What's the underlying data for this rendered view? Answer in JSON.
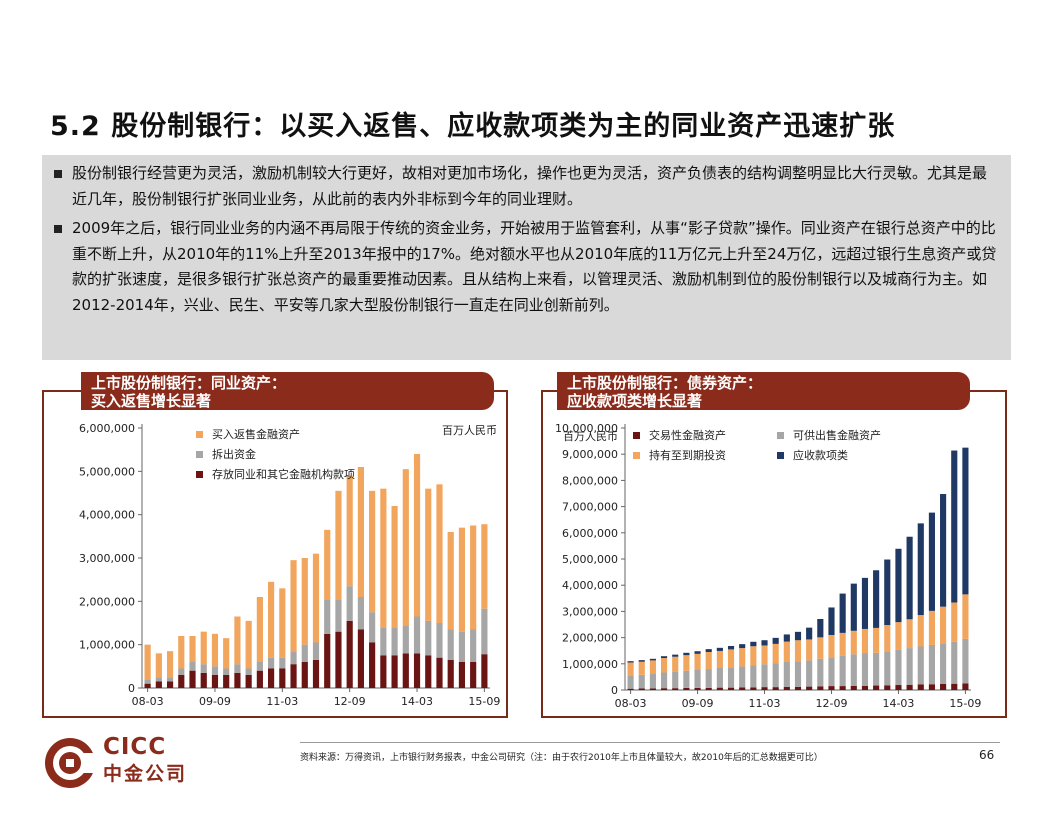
{
  "title": "5.2 股份制银行：以买入返售、应收款项类为主的同业资产迅速扩张",
  "bullets": [
    "股份制银行经营更为灵活，激励机制较大行更好，故相对更加市场化，操作也更为灵活，资产负债表的结构调整明显比大行灵敏。尤其是最近几年，股份制银行扩张同业业务，从此前的表内外非标到今年的同业理财。",
    "2009年之后，银行同业业务的内涵不再局限于传统的资金业务，开始被用于监管套利，从事“影子贷款”操作。同业资产在银行总资产中的比重不断上升，从2010年的11%上升至2013年报中的17%。绝对额水平也从2010年底的11万亿元上升至24万亿，远超过银行生息资产或贷款的扩张速度，是很多银行扩张总资产的最重要推动因素。且从结构上来看，以管理灵活、激励机制到位的股份制银行以及城商行为主。如2012-2014年，兴业、民生、平安等几家大型股份制银行一直走在同业创新前列。"
  ],
  "panels": {
    "left_header_line1": "上市股份制银行：同业资产：",
    "left_header_line2": "买入返售增长显著",
    "right_header_line1": "上市股份制银行：债券资产：",
    "right_header_line2": "应收款项类增长显著"
  },
  "footer": {
    "source": "资料来源：万得资讯，上市银行财务报表，中金公司研究（注：由于农行2010年上市且体量较大，故2010年后的汇总数据更可比）",
    "page": "66"
  },
  "logo": {
    "en": "CICC",
    "zh": "中金公司",
    "color": "#8b2b1b"
  },
  "chart_data": [
    {
      "type": "bar",
      "stacked": true,
      "unit": "百万人民币",
      "x_tick_labels": [
        "08-03",
        "09-09",
        "11-03",
        "12-09",
        "14-03",
        "15-09"
      ],
      "categories": [
        "08-03",
        "08-06",
        "08-09",
        "08-12",
        "09-03",
        "09-06",
        "09-09",
        "09-12",
        "10-03",
        "10-06",
        "10-09",
        "10-12",
        "11-03",
        "11-06",
        "11-09",
        "11-12",
        "12-03",
        "12-06",
        "12-09",
        "12-12",
        "13-03",
        "13-06",
        "13-09",
        "13-12",
        "14-03",
        "14-06",
        "14-09",
        "14-12",
        "15-03",
        "15-06",
        "15-09"
      ],
      "y_tick_labels": [
        "0",
        "1,000,000",
        "2,000,000",
        "3,000,000",
        "4,000,000",
        "5,000,000",
        "6,000,000"
      ],
      "ylim": [
        0,
        6000000
      ],
      "legend_position": "top",
      "series": [
        {
          "name": "存放同业和其它金融机构款项",
          "color": "#6b1414",
          "values": [
            100000,
            150000,
            150000,
            300000,
            400000,
            350000,
            300000,
            300000,
            350000,
            300000,
            400000,
            450000,
            450000,
            550000,
            600000,
            650000,
            1250000,
            1300000,
            1550000,
            1350000,
            1050000,
            750000,
            750000,
            800000,
            800000,
            750000,
            700000,
            650000,
            600000,
            600000,
            780000
          ]
        },
        {
          "name": "拆出资金",
          "color": "#a6a6a6",
          "values": [
            100000,
            100000,
            100000,
            150000,
            200000,
            200000,
            200000,
            150000,
            200000,
            150000,
            200000,
            250000,
            250000,
            300000,
            400000,
            400000,
            800000,
            750000,
            800000,
            750000,
            700000,
            650000,
            650000,
            650000,
            850000,
            800000,
            800000,
            700000,
            700000,
            750000,
            1050000
          ]
        },
        {
          "name": "买入返售金融资产",
          "color": "#f2a55c",
          "values": [
            800000,
            550000,
            600000,
            750000,
            600000,
            750000,
            750000,
            700000,
            1100000,
            1100000,
            1500000,
            1750000,
            1600000,
            2100000,
            2000000,
            2050000,
            1600000,
            2500000,
            2550000,
            3000000,
            2800000,
            3200000,
            2800000,
            3600000,
            3750000,
            3050000,
            3200000,
            2250000,
            2400000,
            2400000,
            1950000
          ]
        }
      ]
    },
    {
      "type": "bar",
      "stacked": true,
      "unit": "百万人民币",
      "x_tick_labels": [
        "08-03",
        "09-09",
        "11-03",
        "12-09",
        "14-03",
        "15-09"
      ],
      "categories": [
        "08-03",
        "08-06",
        "08-09",
        "08-12",
        "09-03",
        "09-06",
        "09-09",
        "09-12",
        "10-03",
        "10-06",
        "10-09",
        "10-12",
        "11-03",
        "11-06",
        "11-09",
        "11-12",
        "12-03",
        "12-06",
        "12-09",
        "12-12",
        "13-03",
        "13-06",
        "13-09",
        "13-12",
        "14-03",
        "14-06",
        "14-09",
        "14-12",
        "15-03",
        "15-06",
        "15-09"
      ],
      "y_tick_labels": [
        "0",
        "1,000,000",
        "2,000,000",
        "3,000,000",
        "4,000,000",
        "5,000,000",
        "6,000,000",
        "7,000,000",
        "8,000,000",
        "9,000,000",
        "10,000,000"
      ],
      "ylim": [
        0,
        10000000
      ],
      "legend_position": "top",
      "series": [
        {
          "name": "交易性金融资产",
          "color": "#6b1414",
          "values": [
            50000,
            60000,
            60000,
            70000,
            70000,
            80000,
            80000,
            80000,
            90000,
            90000,
            100000,
            100000,
            110000,
            110000,
            120000,
            120000,
            130000,
            140000,
            150000,
            150000,
            160000,
            160000,
            170000,
            180000,
            190000,
            200000,
            210000,
            220000,
            230000,
            240000,
            250000
          ]
        },
        {
          "name": "可供出售金融资产",
          "color": "#a6a6a6",
          "values": [
            500000,
            520000,
            550000,
            600000,
            620000,
            650000,
            700000,
            720000,
            750000,
            780000,
            800000,
            850000,
            870000,
            900000,
            950000,
            980000,
            1000000,
            1050000,
            1100000,
            1150000,
            1200000,
            1250000,
            1250000,
            1300000,
            1350000,
            1400000,
            1450000,
            1500000,
            1550000,
            1600000,
            1700000
          ]
        },
        {
          "name": "持有至到期投资",
          "color": "#f2a55c",
          "values": [
            500000,
            500000,
            520000,
            550000,
            580000,
            600000,
            600000,
            650000,
            650000,
            680000,
            700000,
            720000,
            720000,
            750000,
            780000,
            800000,
            800000,
            820000,
            850000,
            880000,
            900000,
            920000,
            950000,
            1000000,
            1050000,
            1100000,
            1200000,
            1300000,
            1400000,
            1500000,
            1700000
          ]
        },
        {
          "name": "应收款项类",
          "color": "#1f3864",
          "values": [
            50000,
            60000,
            60000,
            70000,
            80000,
            90000,
            100000,
            110000,
            120000,
            130000,
            150000,
            170000,
            200000,
            230000,
            270000,
            320000,
            450000,
            700000,
            1050000,
            1500000,
            1800000,
            1950000,
            2200000,
            2500000,
            2800000,
            3150000,
            3500000,
            3750000,
            4300000,
            5800000,
            5600000
          ]
        }
      ]
    }
  ]
}
